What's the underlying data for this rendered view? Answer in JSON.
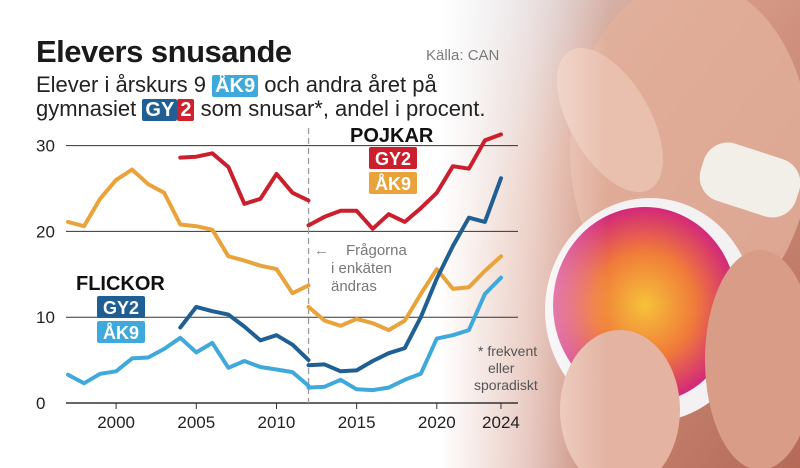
{
  "header": {
    "title": "Elevers snusande",
    "source": "Källa: CAN",
    "subtitle_line1_pre": "Elever i årskurs 9",
    "subtitle_tag_ak9": "ÅK9",
    "subtitle_line1_post": "och andra året på",
    "subtitle_line2_pre": "gymnasiet",
    "subtitle_tag_gy2_a": "GY",
    "subtitle_tag_gy2_b": "2",
    "subtitle_line2_post": "som snusar*, andel i procent."
  },
  "legend": {
    "boys_heading": "POJKAR",
    "girls_heading": "FLICKOR",
    "gy2_label": "GY2",
    "ak9_label": "ÅK9"
  },
  "annotations": {
    "question_change": [
      "Frågorna",
      "i enkäten",
      "ändras"
    ],
    "footnote": [
      "* frekvent",
      "eller",
      "sporadiskt"
    ]
  },
  "colors": {
    "boys_gy2": "#cc1f2d",
    "boys_ak9": "#e9a33a",
    "girls_gy2": "#1f5f94",
    "girls_ak9": "#3fa9dc",
    "grid": "#333333",
    "divider": "#9a9a9a"
  },
  "chart_data": {
    "type": "line",
    "title": "Elevers snusande",
    "xlim": [
      1997,
      2025
    ],
    "ylim": [
      0,
      31
    ],
    "x_ticks": [
      2000,
      2005,
      2010,
      2015,
      2020,
      2024
    ],
    "y_ticks": [
      0,
      10,
      20,
      30
    ],
    "grid": "horizontal",
    "break_year": 2012,
    "series": [
      {
        "key": "boys_gy2",
        "group": "POJKAR",
        "name": "GY2",
        "segments": [
          {
            "x": [
              2004,
              2005,
              2006,
              2007,
              2008,
              2009,
              2010,
              2011,
              2012
            ],
            "y": [
              28.6,
              28.7,
              29.1,
              27.5,
              23.2,
              23.8,
              26.7,
              24.5,
              23.6
            ]
          },
          {
            "x": [
              2012,
              2013,
              2014,
              2015,
              2016,
              2017,
              2018,
              2019,
              2020,
              2021,
              2022,
              2023,
              2024
            ],
            "y": [
              20.7,
              21.7,
              22.4,
              22.4,
              20.3,
              22.0,
              21.1,
              22.7,
              24.5,
              27.6,
              27.3,
              30.6,
              31.3
            ]
          }
        ]
      },
      {
        "key": "boys_ak9",
        "group": "POJKAR",
        "name": "ÅK9",
        "segments": [
          {
            "x": [
              1997,
              1998,
              1999,
              2000,
              2001,
              2002,
              2003,
              2004,
              2005,
              2006,
              2007,
              2008,
              2009,
              2010,
              2011,
              2012
            ],
            "y": [
              21.1,
              20.6,
              23.8,
              26.0,
              27.2,
              25.5,
              24.5,
              20.8,
              20.6,
              20.2,
              17.1,
              16.6,
              16.0,
              15.6,
              12.8,
              13.7
            ]
          },
          {
            "x": [
              2012,
              2013,
              2014,
              2015,
              2016,
              2017,
              2018,
              2019,
              2020,
              2021,
              2022,
              2023,
              2024
            ],
            "y": [
              11.2,
              9.6,
              9.0,
              9.8,
              9.3,
              8.5,
              9.6,
              12.7,
              15.6,
              13.3,
              13.5,
              15.4,
              17.1
            ]
          }
        ]
      },
      {
        "key": "girls_gy2",
        "group": "FLICKOR",
        "name": "GY2",
        "segments": [
          {
            "x": [
              2004,
              2005,
              2006,
              2007,
              2008,
              2009,
              2010,
              2011,
              2012
            ],
            "y": [
              8.8,
              11.2,
              10.7,
              10.3,
              8.9,
              7.3,
              7.9,
              6.8,
              5.0
            ]
          },
          {
            "x": [
              2012,
              2013,
              2014,
              2015,
              2016,
              2017,
              2018,
              2019,
              2020,
              2021,
              2022,
              2023,
              2024
            ],
            "y": [
              4.4,
              4.5,
              3.7,
              3.8,
              4.9,
              5.8,
              6.4,
              10.0,
              14.5,
              18.3,
              21.6,
              21.1,
              26.2
            ]
          }
        ]
      },
      {
        "key": "girls_ak9",
        "group": "FLICKOR",
        "name": "ÅK9",
        "segments": [
          {
            "x": [
              1997,
              1998,
              1999,
              2000,
              2001,
              2002,
              2003,
              2004,
              2005,
              2006,
              2007,
              2008,
              2009,
              2010,
              2011,
              2012
            ],
            "y": [
              3.3,
              2.3,
              3.4,
              3.7,
              5.2,
              5.3,
              6.3,
              7.6,
              5.9,
              7.0,
              4.1,
              4.9,
              4.2,
              3.9,
              3.6,
              2.0
            ]
          },
          {
            "x": [
              2012,
              2013,
              2014,
              2015,
              2016,
              2017,
              2018,
              2019,
              2020,
              2021,
              2022,
              2023,
              2024
            ],
            "y": [
              1.8,
              1.9,
              2.7,
              1.6,
              1.5,
              1.8,
              2.7,
              3.4,
              7.5,
              7.9,
              8.5,
              12.7,
              14.6
            ]
          }
        ]
      }
    ]
  }
}
